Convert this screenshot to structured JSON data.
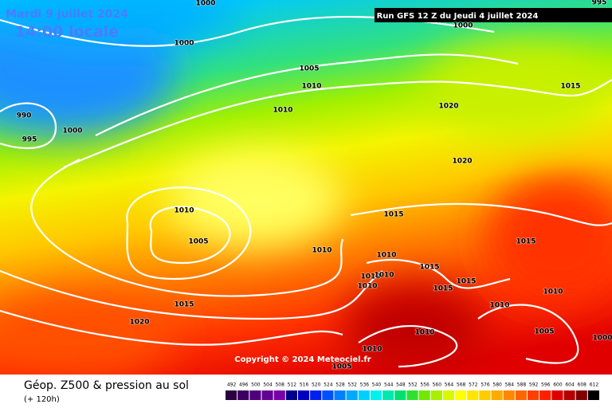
{
  "header": {
    "date": "Mardi 9 juillet 2024",
    "time": "14:00 locale",
    "run": "Run GFS 12 Z du Jeudi 4 juillet 2024"
  },
  "isobar_labels": [
    "1000",
    "995",
    "1000",
    "1000",
    "1005",
    "1010",
    "1010",
    "1015",
    "1020",
    "990",
    "1000",
    "995",
    "1020",
    "1010",
    "1015",
    "1005",
    "1015",
    "1010",
    "1010",
    "1015",
    "1010",
    "1010",
    "1015",
    "1015",
    "1010",
    "1010",
    "1010",
    "1015",
    "1020",
    "1010",
    "1005",
    "1010",
    "1000",
    "1005"
  ],
  "copyright": "Copyright © 2024 Meteociel.fr",
  "footer": {
    "title": "Géop. Z500 & pression au sol",
    "lead": "(+ 120h)"
  },
  "legend": {
    "values": [
      492,
      496,
      500,
      504,
      508,
      512,
      516,
      520,
      524,
      528,
      532,
      536,
      540,
      544,
      548,
      552,
      556,
      560,
      564,
      568,
      572,
      576,
      580,
      584,
      588,
      592,
      596,
      600,
      604,
      608,
      612
    ],
    "colors": [
      "#2a0040",
      "#3c0060",
      "#50007c",
      "#640094",
      "#7a00aa",
      "#00008c",
      "#0000c0",
      "#0020f0",
      "#0050ff",
      "#0080ff",
      "#00a8ff",
      "#00d0ff",
      "#00f0f0",
      "#00e8b0",
      "#00e070",
      "#30e030",
      "#70e800",
      "#a8f000",
      "#d8f800",
      "#ffff00",
      "#ffe600",
      "#ffcc00",
      "#ffaa00",
      "#ff8800",
      "#ff6400",
      "#ff4000",
      "#ff1e00",
      "#e00000",
      "#b40000",
      "#800000",
      "#000000"
    ]
  }
}
